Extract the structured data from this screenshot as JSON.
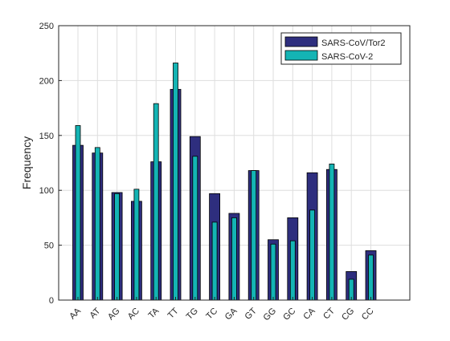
{
  "chart_data": {
    "type": "bar",
    "title": "",
    "xlabel": "",
    "ylabel": "Frequency",
    "ylim": [
      0,
      250
    ],
    "yticks": [
      0,
      50,
      100,
      150,
      200,
      250
    ],
    "grid": true,
    "legend_position": "top-right",
    "categories": [
      "AA",
      "AT",
      "AG",
      "AC",
      "TA",
      "TT",
      "TG",
      "TC",
      "GA",
      "GT",
      "GG",
      "GC",
      "CA",
      "CT",
      "CG",
      "CC"
    ],
    "series": [
      {
        "name": "SARS-CoV/Tor2",
        "color": "#2e2e7e",
        "values": [
          141,
          134,
          98,
          90,
          126,
          192,
          149,
          97,
          79,
          118,
          55,
          75,
          116,
          119,
          26,
          45
        ]
      },
      {
        "name": "SARS-CoV-2",
        "color": "#14b4b4",
        "values": [
          159,
          139,
          97,
          101,
          179,
          216,
          131,
          71,
          75,
          118,
          51,
          54,
          82,
          124,
          19,
          41
        ]
      }
    ]
  }
}
